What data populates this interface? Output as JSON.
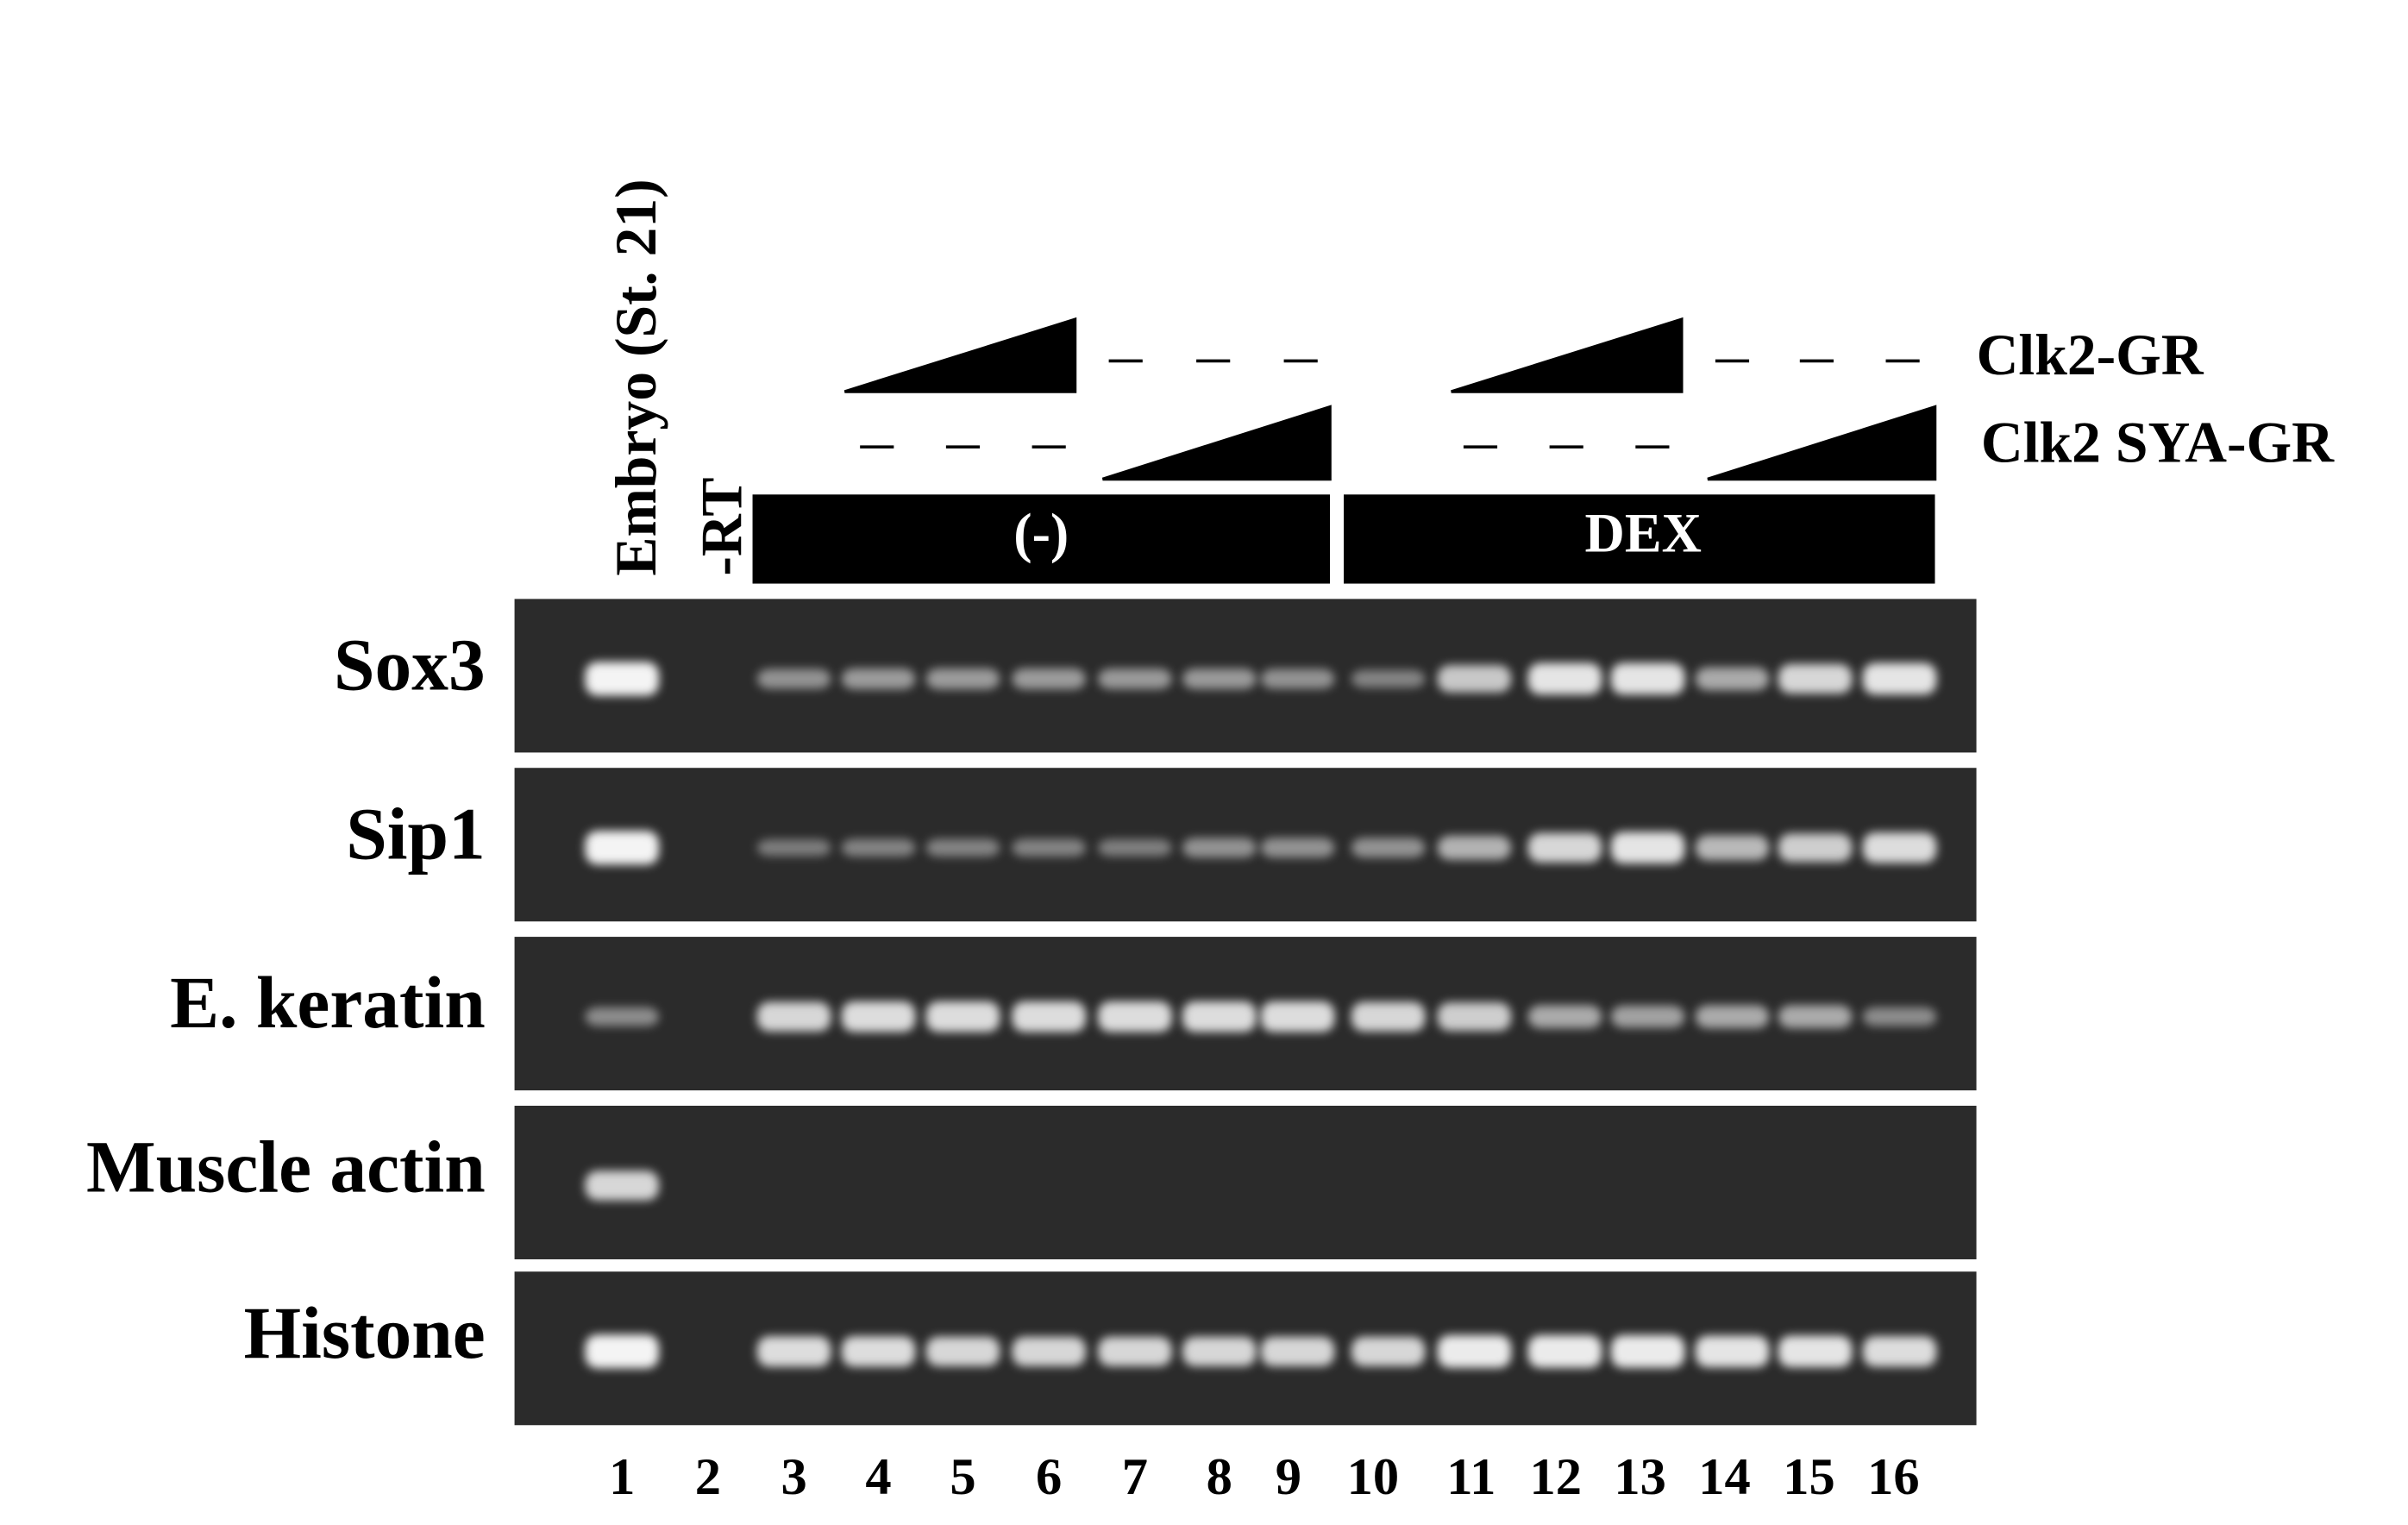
{
  "lane_labels": [
    "Embryo (St. 21)",
    "-RT"
  ],
  "constructs": [
    "Clk2-GR",
    "Clk2 SYA-GR"
  ],
  "treatments": [
    "(-)",
    "DEX"
  ],
  "rows": [
    "Sox3",
    "Sip1",
    "E. keratin",
    "Muscle actin",
    "Histone"
  ],
  "lane_numbers": [
    "1",
    "2",
    "3",
    "4",
    "5",
    "6",
    "7",
    "8",
    "9",
    "10",
    "11",
    "12",
    "13",
    "14",
    "15",
    "16"
  ]
}
